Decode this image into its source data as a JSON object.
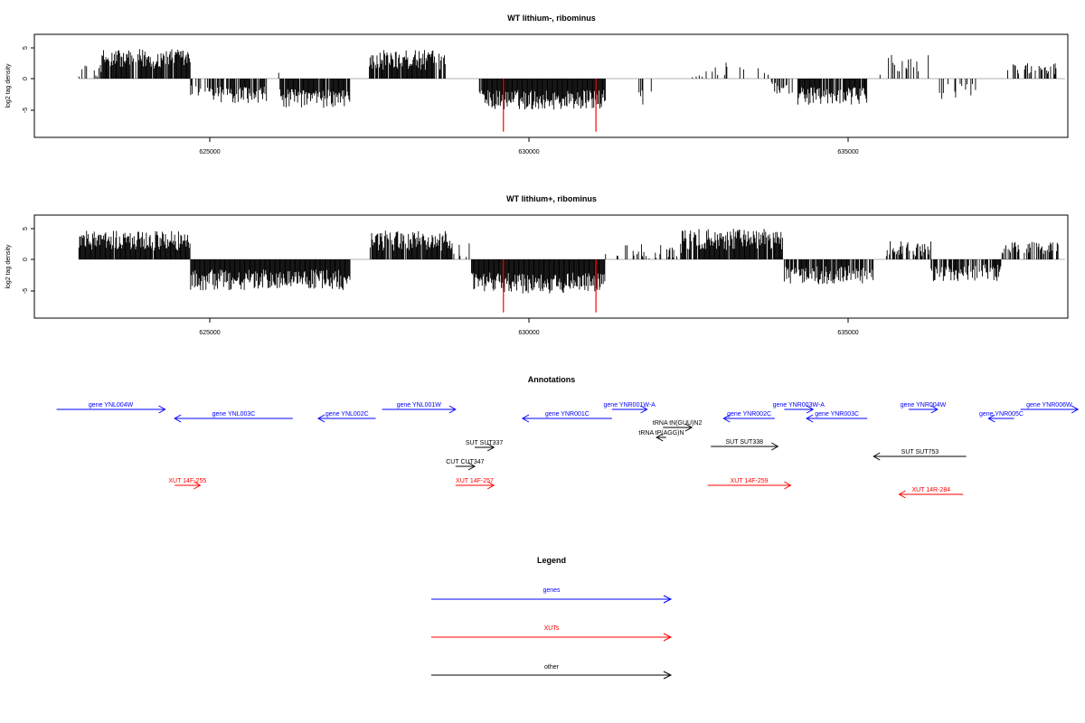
{
  "chart_data": [
    {
      "type": "bar",
      "title": "WT lithium-, ribominus",
      "ylabel": "log2 tag density",
      "xlim": [
        622500,
        638500
      ],
      "ylim": [
        -9,
        7
      ],
      "x_ticks": [
        "625000",
        "630000",
        "635000"
      ],
      "y_ticks": [
        "5",
        "0",
        "-5"
      ],
      "grid": false,
      "profile_segments": [
        {
          "x_start": 622500,
          "x_end": 622950,
          "mean": 0,
          "amp": 0,
          "density": 0
        },
        {
          "x_start": 622950,
          "x_end": 623300,
          "mean": 1.5,
          "amp": 1.2,
          "density": 0.35
        },
        {
          "x_start": 623300,
          "x_end": 624700,
          "mean": 3.2,
          "amp": 1.6,
          "density": 0.9
        },
        {
          "x_start": 624700,
          "x_end": 625000,
          "mean": -2.0,
          "amp": 1.0,
          "density": 0.3
        },
        {
          "x_start": 625000,
          "x_end": 625900,
          "mean": -2.6,
          "amp": 1.3,
          "density": 0.75
        },
        {
          "x_start": 625900,
          "x_end": 626100,
          "mean": 0.8,
          "amp": 0.5,
          "density": 0.2
        },
        {
          "x_start": 626100,
          "x_end": 627200,
          "mean": -3.2,
          "amp": 1.5,
          "density": 0.95
        },
        {
          "x_start": 627200,
          "x_end": 627500,
          "mean": 0,
          "amp": 0,
          "density": 0
        },
        {
          "x_start": 627500,
          "x_end": 628700,
          "mean": 3.0,
          "amp": 1.6,
          "density": 0.9
        },
        {
          "x_start": 628700,
          "x_end": 629200,
          "mean": 0,
          "amp": 0,
          "density": 0
        },
        {
          "x_start": 629200,
          "x_end": 629300,
          "mean": -2.0,
          "amp": 1.0,
          "density": 0.4
        },
        {
          "x_start": 629300,
          "x_end": 631200,
          "mean": -3.4,
          "amp": 1.6,
          "density": 1.0
        },
        {
          "x_start": 631200,
          "x_end": 631700,
          "mean": 0,
          "amp": 0,
          "density": 0
        },
        {
          "x_start": 631700,
          "x_end": 632000,
          "mean": -2.8,
          "amp": 1.5,
          "density": 0.25
        },
        {
          "x_start": 632000,
          "x_end": 632500,
          "mean": 0,
          "amp": 0,
          "density": 0
        },
        {
          "x_start": 632500,
          "x_end": 633800,
          "mean": 1.6,
          "amp": 1.4,
          "density": 0.2
        },
        {
          "x_start": 633800,
          "x_end": 634200,
          "mean": -1.5,
          "amp": 1.0,
          "density": 0.25
        },
        {
          "x_start": 634200,
          "x_end": 635300,
          "mean": -2.8,
          "amp": 1.4,
          "density": 0.9
        },
        {
          "x_start": 635300,
          "x_end": 635500,
          "mean": 0,
          "amp": 0,
          "density": 0
        },
        {
          "x_start": 635500,
          "x_end": 636300,
          "mean": 2.2,
          "amp": 1.6,
          "density": 0.25
        },
        {
          "x_start": 636300,
          "x_end": 637000,
          "mean": -2.0,
          "amp": 1.3,
          "density": 0.3
        },
        {
          "x_start": 637000,
          "x_end": 637500,
          "mean": 0,
          "amp": 0,
          "density": 0
        },
        {
          "x_start": 637500,
          "x_end": 638300,
          "mean": 1.6,
          "amp": 0.9,
          "density": 0.25
        }
      ],
      "highlight_bars": [
        {
          "x": 629600,
          "value": -8.5,
          "color": "#ff0000"
        },
        {
          "x": 631050,
          "value": -8.5,
          "color": "#ff0000"
        }
      ]
    },
    {
      "type": "bar",
      "title": "WT lithium+, ribominus",
      "ylabel": "log2 tag density",
      "xlim": [
        622500,
        638500
      ],
      "ylim": [
        -9,
        7
      ],
      "x_ticks": [
        "625000",
        "630000",
        "635000"
      ],
      "y_ticks": [
        "5",
        "0",
        "-5"
      ],
      "grid": false,
      "profile_segments": [
        {
          "x_start": 622500,
          "x_end": 622950,
          "mean": 0,
          "amp": 0,
          "density": 0
        },
        {
          "x_start": 622950,
          "x_end": 624700,
          "mean": 3.0,
          "amp": 1.6,
          "density": 0.95
        },
        {
          "x_start": 624700,
          "x_end": 627200,
          "mean": -3.3,
          "amp": 1.7,
          "density": 1.0
        },
        {
          "x_start": 627200,
          "x_end": 627500,
          "mean": 0,
          "amp": 0,
          "density": 0
        },
        {
          "x_start": 627500,
          "x_end": 628800,
          "mean": 3.0,
          "amp": 1.6,
          "density": 0.95
        },
        {
          "x_start": 628800,
          "x_end": 629100,
          "mean": 1.5,
          "amp": 1.2,
          "density": 0.2
        },
        {
          "x_start": 629100,
          "x_end": 631200,
          "mean": -3.8,
          "amp": 1.7,
          "density": 1.0
        },
        {
          "x_start": 631200,
          "x_end": 631500,
          "mean": 0.8,
          "amp": 0.6,
          "density": 0.2
        },
        {
          "x_start": 631500,
          "x_end": 632400,
          "mean": 1.0,
          "amp": 1.6,
          "density": 0.35
        },
        {
          "x_start": 632400,
          "x_end": 634000,
          "mean": 3.2,
          "amp": 1.7,
          "density": 0.95
        },
        {
          "x_start": 634000,
          "x_end": 635400,
          "mean": -2.5,
          "amp": 1.5,
          "density": 0.85
        },
        {
          "x_start": 635400,
          "x_end": 635600,
          "mean": 0,
          "amp": 0,
          "density": 0
        },
        {
          "x_start": 635600,
          "x_end": 636300,
          "mean": 1.8,
          "amp": 1.3,
          "density": 0.6
        },
        {
          "x_start": 636300,
          "x_end": 637400,
          "mean": -2.2,
          "amp": 1.4,
          "density": 0.75
        },
        {
          "x_start": 637400,
          "x_end": 638300,
          "mean": 1.8,
          "amp": 1.0,
          "density": 0.5
        }
      ],
      "highlight_bars": [
        {
          "x": 629600,
          "value": -8.5,
          "color": "#ff0000"
        },
        {
          "x": 631050,
          "value": -8.5,
          "color": "#ff0000"
        }
      ]
    },
    {
      "type": "annotation-track",
      "title": "Annotations",
      "features": [
        {
          "label": "gene YNL004W",
          "strand": "+",
          "category": "gene",
          "x_start": 622600,
          "x_end": 624300
        },
        {
          "label": "gene YNL003C",
          "strand": "-",
          "category": "gene",
          "x_start": 624450,
          "x_end": 626300
        },
        {
          "label": "gene YNL002C",
          "strand": "-",
          "category": "gene",
          "x_start": 626700,
          "x_end": 627600
        },
        {
          "label": "gene YNL001W",
          "strand": "+",
          "category": "gene",
          "x_start": 627700,
          "x_end": 628850
        },
        {
          "label": "gene YNR001C",
          "strand": "-",
          "category": "gene",
          "x_start": 629900,
          "x_end": 631300
        },
        {
          "label": "gene YNR001W-A",
          "strand": "+",
          "category": "gene",
          "x_start": 631300,
          "x_end": 631850
        },
        {
          "label": "gene YNR002C",
          "strand": "-",
          "category": "gene",
          "x_start": 633050,
          "x_end": 633850
        },
        {
          "label": "gene YNR003W-A",
          "strand": "+",
          "category": "gene",
          "x_start": 634000,
          "x_end": 634450
        },
        {
          "label": "gene YNR003C",
          "strand": "-",
          "category": "gene",
          "x_start": 634350,
          "x_end": 635300
        },
        {
          "label": "gene YNR004W",
          "strand": "+",
          "category": "gene",
          "x_start": 635950,
          "x_end": 636400
        },
        {
          "label": "gene YNR005C",
          "strand": "-",
          "category": "gene",
          "x_start": 637200,
          "x_end": 637600
        },
        {
          "label": "gene YNR006W",
          "strand": "+",
          "category": "gene",
          "x_start": 637700,
          "x_end": 638600
        },
        {
          "label": "tRNA tN(GUU)N2",
          "strand": "+",
          "category": "other",
          "x_start": 632100,
          "x_end": 632550
        },
        {
          "label": "tRNA tP(AGG)N",
          "strand": "-",
          "category": "other",
          "x_start": 632000,
          "x_end": 632150
        },
        {
          "label": "SUT SUT337",
          "strand": "+",
          "category": "other",
          "x_start": 629150,
          "x_end": 629450
        },
        {
          "label": "SUT SUT338",
          "strand": "+",
          "category": "other",
          "x_start": 632850,
          "x_end": 633900
        },
        {
          "label": "SUT SUT753",
          "strand": "-",
          "category": "other",
          "x_start": 635400,
          "x_end": 636850
        },
        {
          "label": "CUT CUT347",
          "strand": "+",
          "category": "other",
          "x_start": 628850,
          "x_end": 629150
        },
        {
          "label": "XUT 14F-255",
          "strand": "+",
          "category": "xut",
          "x_start": 624450,
          "x_end": 624850
        },
        {
          "label": "XUT 14F-257",
          "strand": "+",
          "category": "xut",
          "x_start": 628850,
          "x_end": 629450
        },
        {
          "label": "XUT 14F-259",
          "strand": "+",
          "category": "xut",
          "x_start": 632800,
          "x_end": 634100
        },
        {
          "label": "XUT 14R-284",
          "strand": "-",
          "category": "xut",
          "x_start": 635800,
          "x_end": 636800
        }
      ]
    },
    {
      "type": "legend",
      "title": "Legend",
      "entries": [
        {
          "label": "genes",
          "color": "#0000ff"
        },
        {
          "label": "XUTs",
          "color": "#ff0000"
        },
        {
          "label": "other",
          "color": "#000000"
        }
      ]
    }
  ],
  "colors": {
    "gene": "#0000ff",
    "xut": "#ff0000",
    "other": "#000000",
    "bar": "#000000",
    "highlight": "#ff0000",
    "zero_line": "#9a9a9a"
  }
}
